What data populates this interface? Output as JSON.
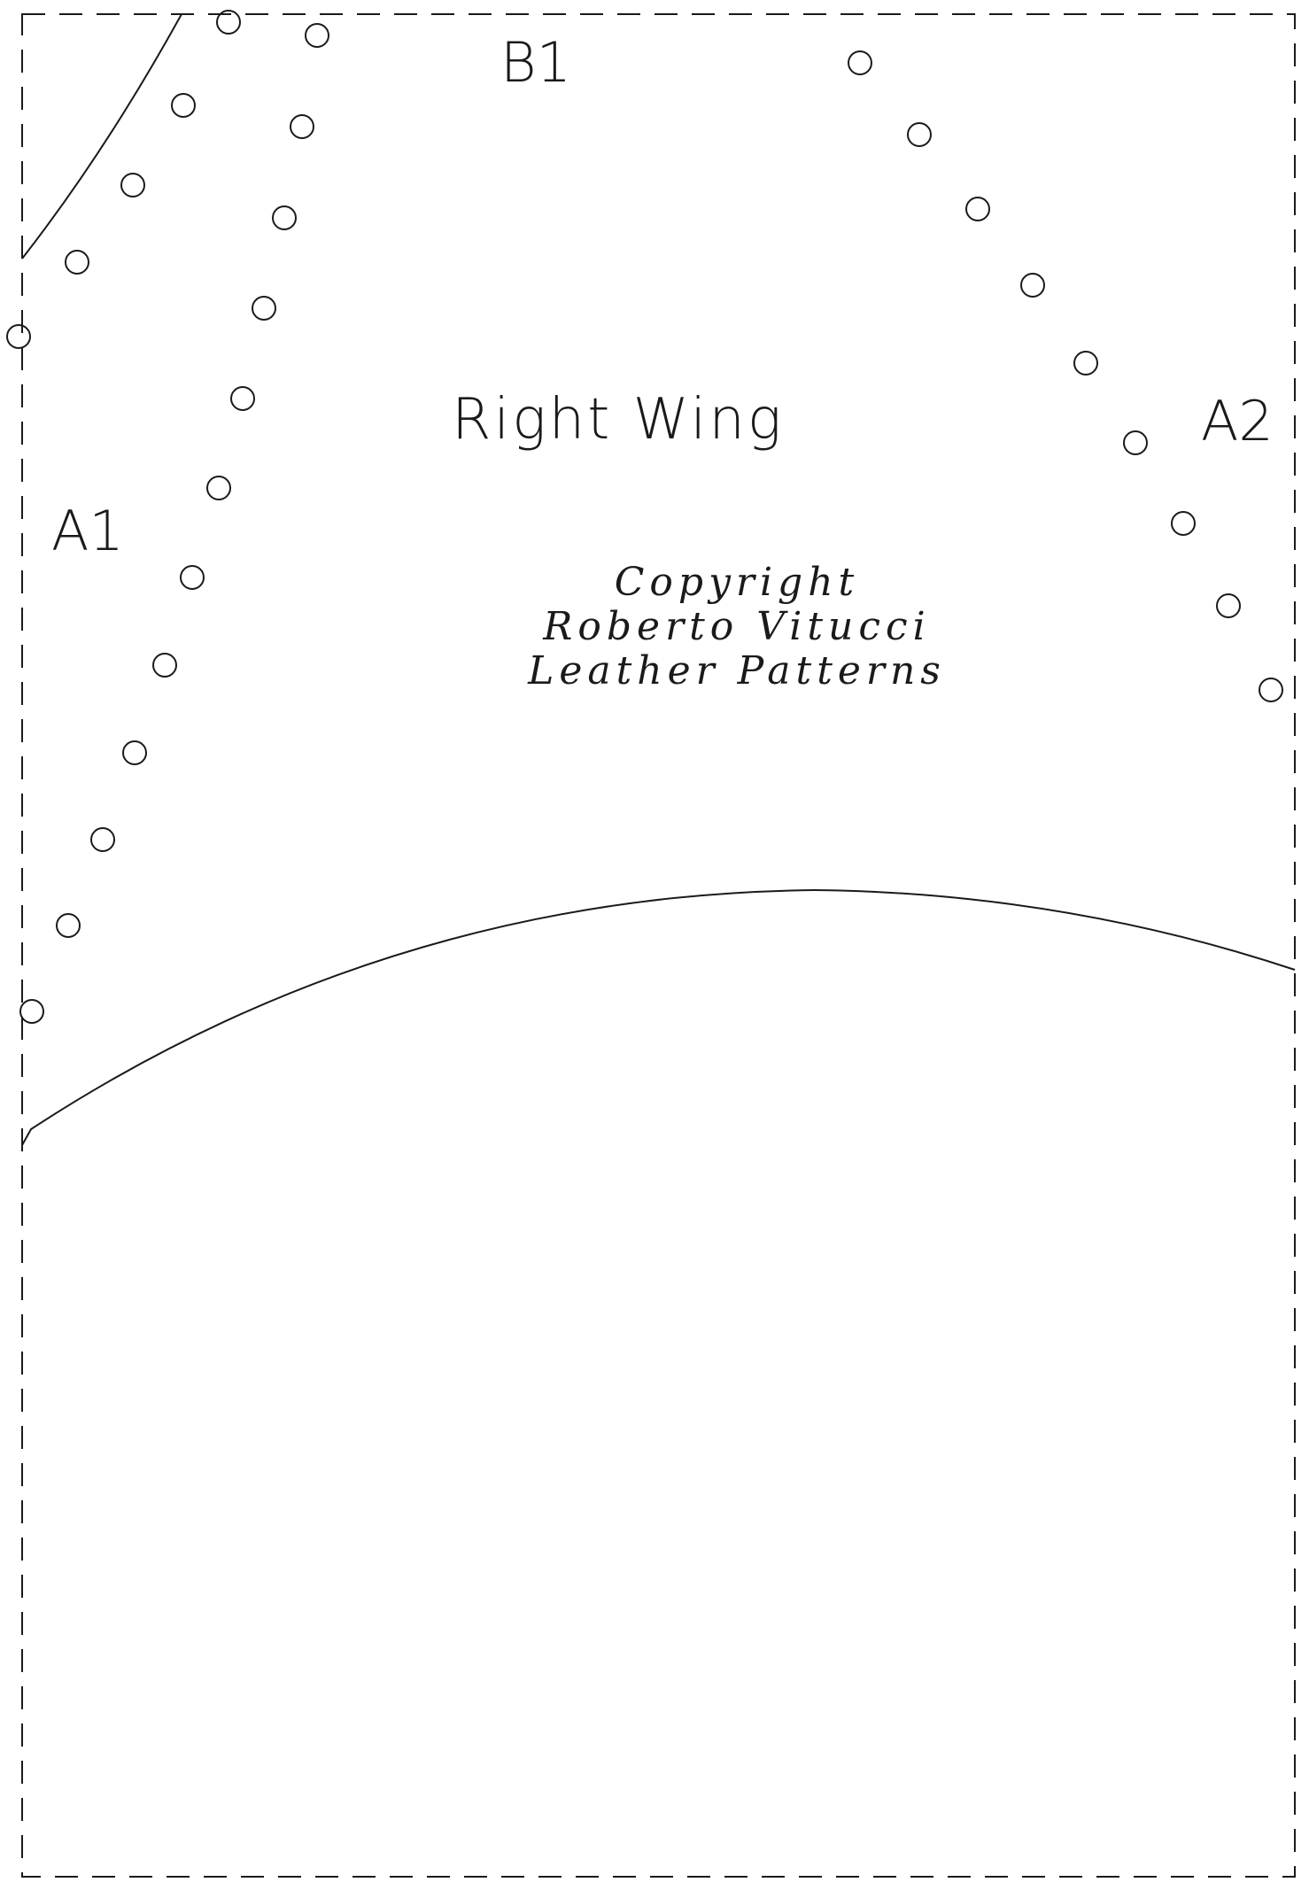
{
  "pattern": {
    "piece_label": "Right Wing",
    "markers": {
      "a1": "A1",
      "a2": "A2",
      "b1": "B1"
    },
    "copyright": {
      "line1": "Copyright",
      "line2": "Roberto Vitucci",
      "line3": "Leather Patterns"
    },
    "stroke_color": "#1a1a1a",
    "background_color": "#ffffff"
  }
}
